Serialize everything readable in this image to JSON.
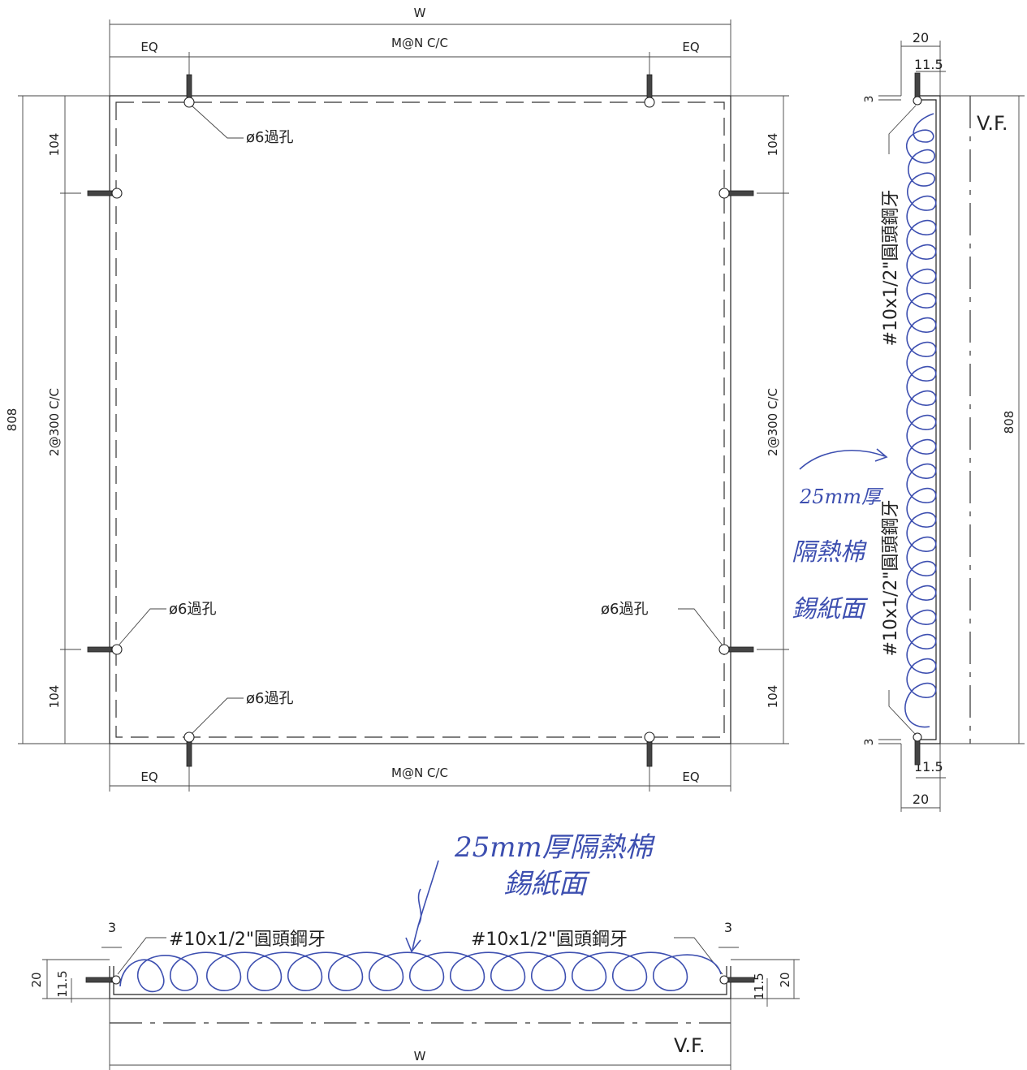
{
  "front_view": {
    "width_label": "W",
    "eq_label": "EQ",
    "spacing_label": "M@N C/C",
    "height_label": "808",
    "edge_offset_label": "104",
    "side_spacing_label": "2@300 C/C",
    "hole_label": "ø6過孔"
  },
  "side_view": {
    "total_width_label": "20",
    "screw_offset_label": "11.5",
    "gap_label": "3",
    "height_label": "808",
    "finish_label": "V.F.",
    "screw_label": "#10x1/2\"圓頭鋼牙"
  },
  "bottom_view": {
    "width_label": "W",
    "gap_label": "3",
    "height_label": "20",
    "screw_offset_label": "11.5",
    "finish_label": "V.F.",
    "screw_label": "#10x1/2\"圓頭鋼牙"
  },
  "annotations": {
    "insulation_note_line1": "25mm厚隔熱棉",
    "insulation_note_line2": "錫紙面",
    "side_note_line1": "25mm厚",
    "side_note_line2": "隔熱棉",
    "side_note_line3": "錫紙面"
  },
  "colors": {
    "linework": "#222222",
    "handwriting": "#3d4fb0"
  }
}
